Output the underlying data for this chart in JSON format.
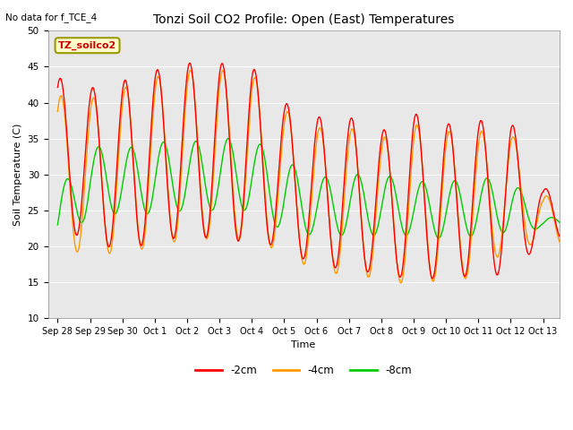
{
  "title": "Tonzi Soil CO2 Profile: Open (East) Temperatures",
  "subtitle": "No data for f_TCE_4",
  "xlabel": "Time",
  "ylabel": "Soil Temperature (C)",
  "ylim": [
    10,
    50
  ],
  "bg_color": "#e8e8e8",
  "legend_label": "TZ_soilco2",
  "legend_box_color": "#ffffcc",
  "legend_box_edge": "#999900",
  "series_labels": [
    "-2cm",
    "-4cm",
    "-8cm"
  ],
  "series_colors": [
    "#ff0000",
    "#ff9900",
    "#00cc00"
  ],
  "xtick_labels": [
    "Sep 28",
    "Sep 29",
    "Sep 30",
    "Oct 1",
    "Oct 2",
    "Oct 3",
    "Oct 4",
    "Oct 5",
    "Oct 6",
    "Oct 7",
    "Oct 8",
    "Oct 9",
    "Oct 10",
    "Oct 11",
    "Oct 12",
    "Oct 13"
  ],
  "xtick_positions": [
    0,
    1,
    2,
    3,
    4,
    5,
    6,
    7,
    8,
    9,
    10,
    11,
    12,
    13,
    14,
    15
  ],
  "daily_peaks_2cm": [
    43.5,
    42.0,
    43.0,
    44.5,
    45.5,
    45.5,
    45.0,
    40.0,
    38.0,
    38.0,
    36.0,
    38.5,
    37.0,
    37.5,
    37.5,
    28.0
  ],
  "daily_mins_2cm": [
    23.0,
    20.5,
    19.5,
    20.5,
    21.5,
    21.0,
    20.5,
    20.0,
    17.0,
    17.0,
    16.0,
    15.5,
    15.5,
    16.0,
    16.0,
    21.0
  ],
  "daily_peaks_4cm": [
    41.0,
    40.5,
    42.0,
    43.5,
    44.5,
    44.5,
    44.0,
    39.0,
    36.5,
    36.5,
    35.0,
    37.0,
    36.0,
    36.0,
    36.0,
    27.0
  ],
  "daily_mins_4cm": [
    19.5,
    19.0,
    19.0,
    20.0,
    21.0,
    21.0,
    21.0,
    19.0,
    16.5,
    16.0,
    15.5,
    14.5,
    15.5,
    15.5,
    20.5,
    20.0
  ],
  "daily_peaks_8cm": [
    27.5,
    34.0,
    33.5,
    34.5,
    34.5,
    35.0,
    35.0,
    32.0,
    29.5,
    30.0,
    30.0,
    29.0,
    29.0,
    29.5,
    29.5,
    24.0
  ],
  "daily_mins_8cm": [
    19.5,
    24.5,
    24.5,
    24.5,
    25.0,
    25.0,
    25.0,
    22.0,
    21.5,
    21.5,
    21.5,
    21.5,
    21.0,
    21.5,
    22.0,
    22.5
  ],
  "peak_hour_2cm": 14.0,
  "peak_hour_4cm": 14.5,
  "peak_hour_8cm": 18.5
}
